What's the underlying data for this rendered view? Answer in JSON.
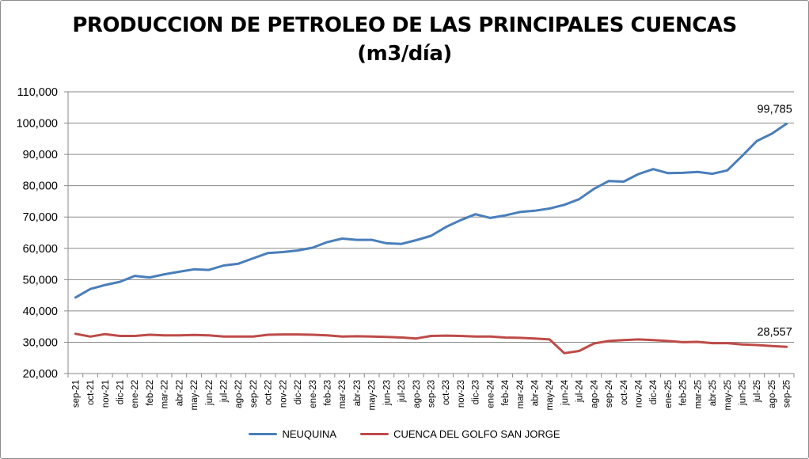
{
  "chart_data": {
    "type": "line",
    "title_line1": "PRODUCCION DE PETROLEO DE LAS PRINCIPALES CUENCAS",
    "title_line2": "(m3/día)",
    "xlabel": "",
    "ylabel": "",
    "ylim": [
      20000,
      110000
    ],
    "ytick_step": 10000,
    "ytick_labels": [
      "20,000",
      "30,000",
      "40,000",
      "50,000",
      "60,000",
      "70,000",
      "80,000",
      "90,000",
      "100,000",
      "110,000"
    ],
    "grid": true,
    "legend_position": "bottom",
    "categories": [
      "sep-21",
      "oct-21",
      "nov-21",
      "dic-21",
      "ene-22",
      "feb-22",
      "mar-22",
      "abr-22",
      "may-22",
      "jun-22",
      "jul-22",
      "ago-22",
      "sep-22",
      "oct-22",
      "nov-22",
      "dic-22",
      "ene-23",
      "feb-23",
      "mar-23",
      "abr-23",
      "may-23",
      "jun-23",
      "jul-23",
      "ago-23",
      "sep-23",
      "oct-23",
      "nov-23",
      "dic-23",
      "ene-24",
      "feb-24",
      "mar-24",
      "abr-24",
      "may-24",
      "jun-24",
      "jul-24",
      "ago-24",
      "sep-24",
      "oct-24",
      "nov-24",
      "dic-24",
      "ene-25",
      "feb-25",
      "mar-25",
      "abr-25",
      "may-25",
      "jun-25",
      "jul-25",
      "ago-25",
      "sep-25"
    ],
    "series": [
      {
        "name": "NEUQUINA",
        "color": "#4a7ebb",
        "end_label": "99,785",
        "values": [
          44300,
          47000,
          48300,
          49300,
          51200,
          50700,
          51700,
          52500,
          53300,
          53100,
          54500,
          55100,
          56800,
          58500,
          58800,
          59300,
          60200,
          62000,
          63100,
          62700,
          62700,
          61600,
          61400,
          62600,
          64000,
          66800,
          69000,
          70900,
          69700,
          70500,
          71600,
          72000,
          72700,
          73900,
          75700,
          79000,
          81500,
          81300,
          83700,
          85300,
          84000,
          84100,
          84400,
          83800,
          84900,
          89500,
          94300,
          96600,
          99785
        ]
      },
      {
        "name": "CUENCA DEL GOLFO SAN JORGE",
        "color": "#be4b48",
        "end_label": "28,557",
        "values": [
          32700,
          31800,
          32600,
          32000,
          32000,
          32400,
          32200,
          32200,
          32300,
          32200,
          31800,
          31800,
          31800,
          32400,
          32500,
          32500,
          32400,
          32200,
          31800,
          31900,
          31800,
          31700,
          31500,
          31200,
          32000,
          32100,
          32000,
          31800,
          31800,
          31500,
          31400,
          31200,
          30900,
          26500,
          27200,
          29600,
          30400,
          30700,
          30900,
          30700,
          30400,
          30000,
          30100,
          29700,
          29700,
          29300,
          29100,
          28800,
          28557
        ]
      }
    ]
  }
}
